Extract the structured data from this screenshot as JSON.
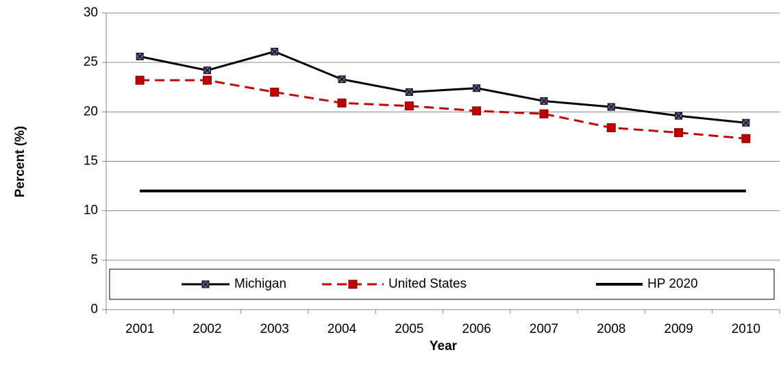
{
  "chart_data": {
    "type": "line",
    "categories": [
      "2001",
      "2002",
      "2003",
      "2004",
      "2005",
      "2006",
      "2007",
      "2008",
      "2009",
      "2010"
    ],
    "series": [
      {
        "name": "Michigan",
        "color": "#000000",
        "marker": "square-x",
        "marker_color": "#6e5a8c",
        "dashed": false,
        "values": [
          25.6,
          24.2,
          26.1,
          23.3,
          22.0,
          22.4,
          21.1,
          20.5,
          19.6,
          18.9
        ]
      },
      {
        "name": "United States",
        "color": "#c00000",
        "marker": "square",
        "marker_color": "#c00000",
        "dashed": true,
        "values": [
          23.2,
          23.2,
          22.0,
          20.9,
          20.6,
          20.1,
          19.8,
          18.4,
          17.9,
          17.3
        ]
      },
      {
        "name": "HP 2020",
        "color": "#000000",
        "dashed": false,
        "values": [
          12,
          12,
          12,
          12,
          12,
          12,
          12,
          12,
          12,
          12
        ]
      }
    ],
    "ylim": [
      0,
      30
    ],
    "yticks": [
      0,
      5,
      10,
      15,
      20,
      25,
      30
    ],
    "grid": true,
    "y_label": "Percent (%)",
    "x_label": "Year",
    "legend": "bottom"
  }
}
